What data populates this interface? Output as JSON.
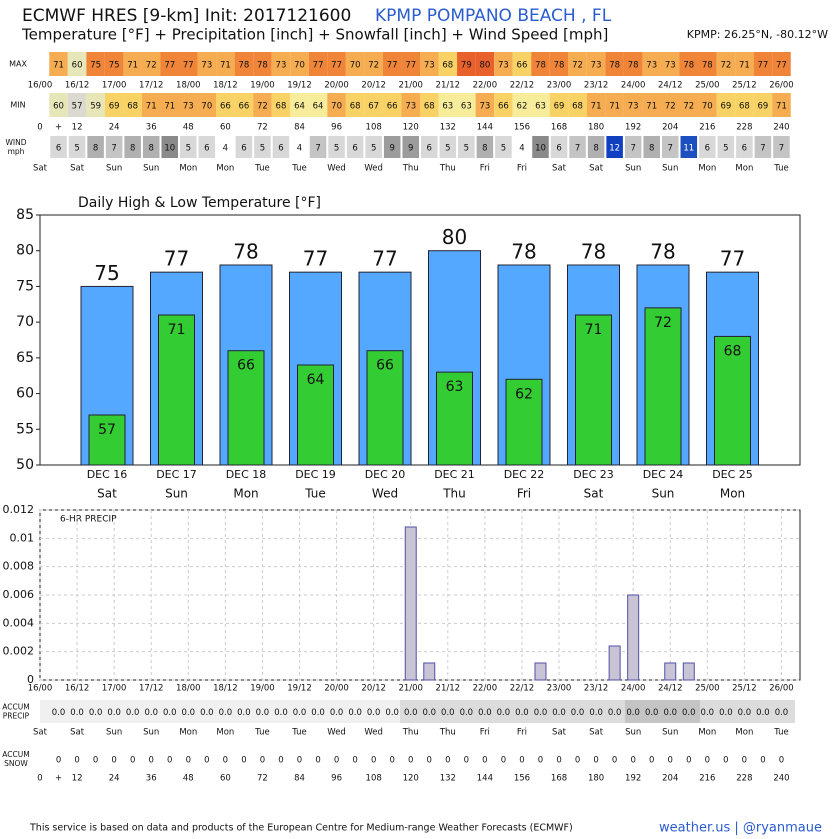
{
  "header": {
    "title": "ECMWF HRES [9-km] Init: 2017121600",
    "location": "KPMP POMPANO BEACH  , FL",
    "subtitle": "Temperature [°F] + Precipitation [inch] + Snowfall [inch] + Wind Speed [mph]",
    "coords": "KPMP: 26.25°N, -80.12°W"
  },
  "strips": {
    "max": {
      "label": "MAX",
      "values": [
        71,
        60,
        75,
        75,
        71,
        72,
        77,
        77,
        73,
        71,
        78,
        78,
        73,
        70,
        77,
        77,
        70,
        72,
        77,
        77,
        73,
        68,
        79,
        80,
        73,
        66,
        78,
        78,
        72,
        73,
        78,
        78,
        73,
        73,
        78,
        78,
        72,
        71,
        77,
        77
      ]
    },
    "min": {
      "label": "MIN",
      "values": [
        60,
        57,
        59,
        69,
        68,
        71,
        71,
        73,
        70,
        66,
        66,
        72,
        68,
        64,
        64,
        70,
        68,
        67,
        66,
        73,
        68,
        63,
        63,
        73,
        66,
        62,
        63,
        69,
        68,
        71,
        71,
        73,
        71,
        72,
        72,
        70,
        69,
        68,
        69,
        71
      ]
    },
    "wind": {
      "label": [
        "WIND",
        "mph"
      ],
      "values": [
        6,
        5,
        8,
        7,
        8,
        8,
        10,
        5,
        6,
        4,
        6,
        5,
        6,
        4,
        7,
        5,
        6,
        5,
        9,
        9,
        6,
        5,
        5,
        8,
        5,
        4,
        10,
        6,
        7,
        8,
        12,
        7,
        8,
        7,
        11,
        6,
        5,
        6,
        7,
        7
      ]
    },
    "accum_precip": {
      "label": [
        "ACCUM",
        "PRECIP"
      ],
      "values": [
        0,
        0,
        0,
        0,
        0,
        0,
        0,
        0,
        0,
        0,
        0,
        0,
        0,
        0,
        0,
        0,
        0,
        0,
        0,
        0,
        0,
        0,
        0,
        0,
        0,
        0,
        0,
        0,
        0,
        0,
        0,
        0,
        0,
        0,
        0,
        0,
        0,
        0,
        0,
        0
      ],
      "value_labels": [
        "0.0",
        "0.0",
        "0.0",
        "0.0",
        "0.0",
        "0.0",
        "0.0",
        "0.0",
        "0.0",
        "0.0",
        "0.0",
        "0.0",
        "0.0",
        "0.0",
        "0.0",
        "0.0",
        "0.0",
        "0.0",
        "0.0",
        "0.0",
        "0.0",
        "0.0",
        "0.0",
        "0.0",
        "0.0",
        "0.0",
        "0.0",
        "0.0",
        "0.0",
        "0.0",
        "0.0",
        "0.0",
        "0.0",
        "0.0",
        "0.0",
        "0.0",
        "0.0",
        "0.0",
        "0.0",
        "0.0"
      ]
    },
    "accum_snow": {
      "label": [
        "ACCUM",
        "SNOW"
      ],
      "values": [
        0,
        0,
        0,
        0,
        0,
        0,
        0,
        0,
        0,
        0,
        0,
        0,
        0,
        0,
        0,
        0,
        0,
        0,
        0,
        0,
        0,
        0,
        0,
        0,
        0,
        0,
        0,
        0,
        0,
        0,
        0,
        0,
        0,
        0,
        0,
        0,
        0,
        0,
        0,
        0
      ]
    }
  },
  "strip_days": [
    {
      "value": 0,
      "label": "Sat"
    },
    {
      "value": 12,
      "label": "Sat"
    },
    {
      "value": 24,
      "label": "Sun"
    },
    {
      "value": 36,
      "label": "Sun"
    },
    {
      "value": 48,
      "label": "Mon"
    },
    {
      "value": 60,
      "label": "Mon"
    },
    {
      "value": 72,
      "label": "Tue"
    },
    {
      "value": 84,
      "label": "Tue"
    },
    {
      "value": 96,
      "label": "Wed"
    },
    {
      "value": 108,
      "label": "Wed"
    },
    {
      "value": 120,
      "label": "Thu"
    },
    {
      "value": 132,
      "label": "Thu"
    },
    {
      "value": 144,
      "label": "Fri"
    },
    {
      "value": 156,
      "label": "Fri"
    },
    {
      "value": 168,
      "label": "Sat"
    },
    {
      "value": 180,
      "label": "Sat"
    },
    {
      "value": 192,
      "label": "Sun"
    },
    {
      "value": 204,
      "label": "Sun"
    },
    {
      "value": 216,
      "label": "Mon"
    },
    {
      "value": 228,
      "label": "Mon"
    },
    {
      "value": 240,
      "label": "Tue"
    }
  ],
  "hour_labels": [
    0,
    {
      "value": 6,
      "label": "+"
    },
    12,
    24,
    36,
    48,
    60,
    72,
    84,
    96,
    108,
    120,
    132,
    144,
    156,
    168,
    180,
    192,
    204,
    216,
    228,
    240
  ],
  "chart_data": [
    {
      "type": "bar",
      "title": "Daily High & Low Temperature [°F]",
      "categories": [
        "DEC 16",
        "DEC 17",
        "DEC 18",
        "DEC 19",
        "DEC 20",
        "DEC 21",
        "DEC 22",
        "DEC 23",
        "DEC 24",
        "DEC 25"
      ],
      "day_labels": [
        "Sat",
        "Sun",
        "Mon",
        "Tue",
        "Wed",
        "Thu",
        "Fri",
        "Sat",
        "Sun",
        "Mon"
      ],
      "series": [
        {
          "color": "#55a8ff",
          "values": [
            75,
            77,
            78,
            77,
            77,
            80,
            78,
            78,
            78,
            77
          ]
        },
        {
          "color": "#33cc33",
          "values": [
            57,
            71,
            66,
            64,
            66,
            63,
            62,
            71,
            72,
            68
          ]
        }
      ],
      "ylim": [
        50,
        85
      ],
      "yticks": [
        50,
        55,
        60,
        65,
        70,
        75,
        80,
        85
      ]
    },
    {
      "type": "bar",
      "annotation": "6-HR PRECIP",
      "x": [
        0,
        6,
        12,
        18,
        24,
        30,
        36,
        42,
        48,
        54,
        60,
        66,
        72,
        78,
        84,
        90,
        96,
        102,
        108,
        114,
        120,
        126,
        132,
        138,
        144,
        150,
        156,
        162,
        168,
        174,
        180,
        186,
        192,
        198,
        204,
        210,
        216,
        222,
        228,
        234,
        240
      ],
      "values": [
        0,
        0,
        0,
        0,
        0,
        0,
        0,
        0,
        0,
        0,
        0,
        0,
        0,
        0,
        0,
        0,
        0,
        0,
        0,
        0,
        0.0108,
        0.0012,
        0,
        0,
        0,
        0,
        0,
        0.0012,
        0,
        0,
        0,
        0.0024,
        0.006,
        0,
        0.0012,
        0.0012,
        0,
        0,
        0,
        0,
        0
      ],
      "color": "#c8c4d6",
      "edge_color": "#5050a8",
      "xlim": [
        0,
        246
      ],
      "xticks": [
        {
          "value": 0,
          "label": "16/00"
        },
        {
          "value": 12,
          "label": "16/12"
        },
        {
          "value": 24,
          "label": "17/00"
        },
        {
          "value": 36,
          "label": "17/12"
        },
        {
          "value": 48,
          "label": "18/00"
        },
        {
          "value": 60,
          "label": "18/12"
        },
        {
          "value": 72,
          "label": "19/00"
        },
        {
          "value": 84,
          "label": "19/12"
        },
        {
          "value": 96,
          "label": "20/00"
        },
        {
          "value": 108,
          "label": "20/12"
        },
        {
          "value": 120,
          "label": "21/00"
        },
        {
          "value": 132,
          "label": "21/12"
        },
        {
          "value": 144,
          "label": "22/00"
        },
        {
          "value": 156,
          "label": "22/12"
        },
        {
          "value": 168,
          "label": "23/00"
        },
        {
          "value": 180,
          "label": "23/12"
        },
        {
          "value": 192,
          "label": "24/00"
        },
        {
          "value": 204,
          "label": "24/12"
        },
        {
          "value": 216,
          "label": "25/00"
        },
        {
          "value": 228,
          "label": "25/12"
        },
        {
          "value": 240,
          "label": "26/00"
        }
      ],
      "ylim": [
        0,
        0.012
      ],
      "yticks": [
        0,
        0.002,
        0.004,
        0.006,
        0.008,
        0.01,
        0.012
      ],
      "grid": true
    }
  ],
  "footer": {
    "credit": "This service is based on data and products of the European Centre for Medium-range Weather Forecasts (ECMWF)",
    "site": "weather.us | @ryanmaue"
  }
}
